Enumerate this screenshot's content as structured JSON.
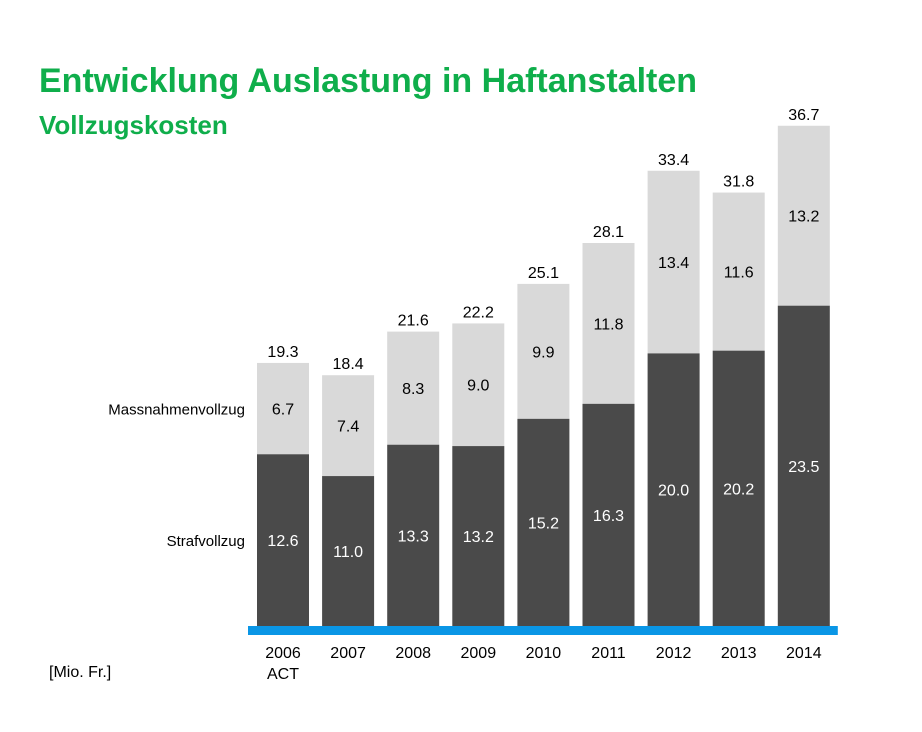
{
  "header": {
    "title": "Entwicklung Auslastung in Haftanstalten",
    "subtitle": "Vollzugskosten"
  },
  "unit_label": "[Mio. Fr.]",
  "colors": {
    "title": "#0fae4b",
    "bottom_segment": "#4a4a4a",
    "top_segment": "#d9d9d9",
    "axis_line": "#0a96e6"
  },
  "chart_data": {
    "type": "bar",
    "stacked": true,
    "categories": [
      "2006\nACT",
      "2007",
      "2008",
      "2009",
      "2010",
      "2011",
      "2012",
      "2013",
      "2014"
    ],
    "series": [
      {
        "name": "Strafvollzug",
        "values": [
          12.6,
          11.0,
          13.3,
          13.2,
          15.2,
          16.3,
          20.0,
          20.2,
          23.5
        ]
      },
      {
        "name": "Massnahmenvollzug",
        "values": [
          6.7,
          7.4,
          8.3,
          9.0,
          9.9,
          11.8,
          13.4,
          11.6,
          13.2
        ]
      }
    ],
    "totals": [
      19.3,
      18.4,
      21.6,
      22.2,
      25.1,
      28.1,
      33.4,
      31.8,
      36.7
    ],
    "ylim": [
      0,
      37
    ],
    "legend": "left, labels beside first bar",
    "grid": false
  }
}
